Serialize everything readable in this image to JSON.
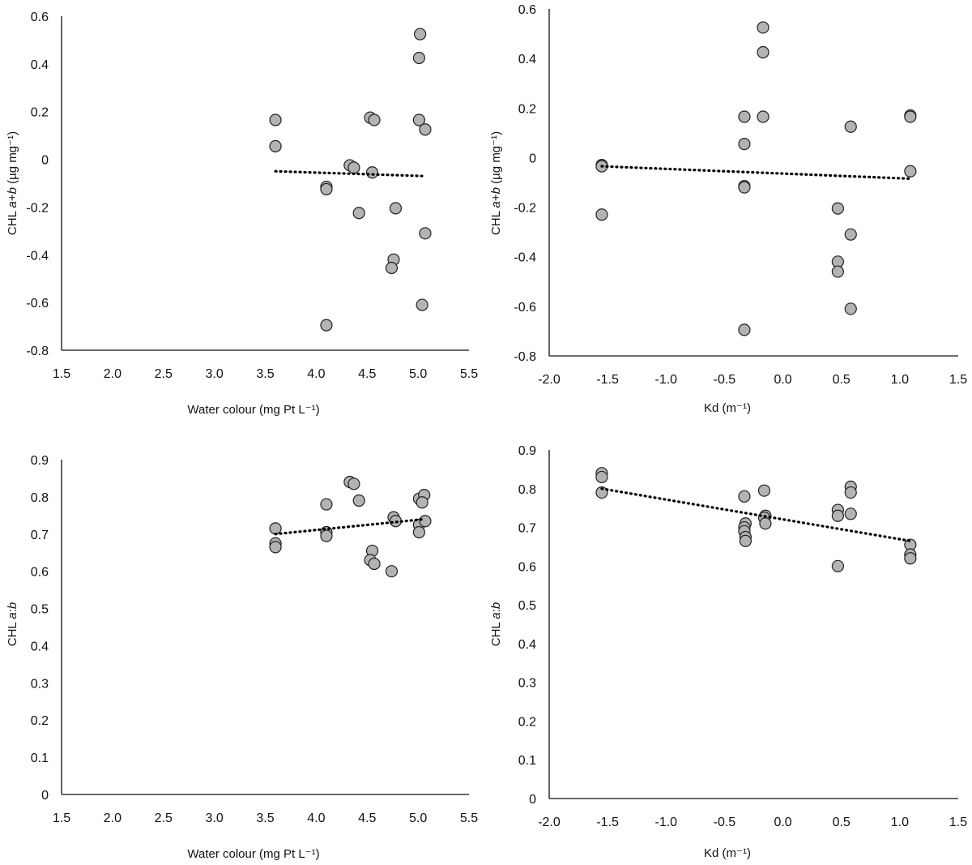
{
  "chart_data": [
    {
      "type": "scatter",
      "xlabel": "Water colour (mg Pt L⁻¹)",
      "ylabel": "CHL a+b (µg mg⁻¹)",
      "xlim": [
        1.5,
        5.5
      ],
      "ylim": [
        -0.8,
        0.6
      ],
      "xticks": [
        "1.5",
        "2.0",
        "2.5",
        "3.0",
        "3.5",
        "4.0",
        "4.5",
        "5.0",
        "5.5"
      ],
      "yticks": [
        "0.6",
        "0.4",
        "0.2",
        "0",
        "-0.2",
        "-0.4",
        "-0.6",
        "-0.8"
      ],
      "points": [
        [
          3.6,
          0.165
        ],
        [
          3.6,
          0.055
        ],
        [
          4.1,
          -0.115
        ],
        [
          4.1,
          -0.125
        ],
        [
          4.1,
          -0.695
        ],
        [
          4.33,
          -0.025
        ],
        [
          4.37,
          -0.035
        ],
        [
          4.42,
          -0.225
        ],
        [
          4.53,
          0.175
        ],
        [
          4.57,
          0.165
        ],
        [
          4.55,
          -0.055
        ],
        [
          4.76,
          -0.42
        ],
        [
          4.74,
          -0.455
        ],
        [
          4.78,
          -0.205
        ],
        [
          5.02,
          0.525
        ],
        [
          5.01,
          0.425
        ],
        [
          5.01,
          0.165
        ],
        [
          5.07,
          0.125
        ],
        [
          5.07,
          -0.31
        ],
        [
          5.04,
          -0.61
        ]
      ],
      "trendline": [
        [
          3.6,
          -0.05
        ],
        [
          5.06,
          -0.07
        ]
      ],
      "grid": false,
      "legend": "none"
    },
    {
      "type": "scatter",
      "xlabel": "Kd (m⁻¹)",
      "ylabel": "CHL a+b (µg mg⁻¹)",
      "xlim": [
        -2.0,
        1.5
      ],
      "ylim": [
        -0.8,
        0.6
      ],
      "xticks": [
        "-2.0",
        "-1.5",
        "-1.0",
        "-0.5",
        "0.0",
        "0.5",
        "1.0",
        "1.5"
      ],
      "yticks": [
        "0.6",
        "0.4",
        "0.2",
        "0",
        "-0.2",
        "-0.4",
        "-0.6",
        "-0.8"
      ],
      "points": [
        [
          -1.55,
          -0.03
        ],
        [
          -1.55,
          -0.035
        ],
        [
          -1.55,
          -0.23
        ],
        [
          -0.33,
          0.165
        ],
        [
          -0.33,
          0.055
        ],
        [
          -0.33,
          -0.115
        ],
        [
          -0.33,
          -0.12
        ],
        [
          -0.33,
          -0.695
        ],
        [
          -0.17,
          0.525
        ],
        [
          -0.17,
          0.425
        ],
        [
          -0.17,
          0.165
        ],
        [
          0.47,
          -0.205
        ],
        [
          0.47,
          -0.42
        ],
        [
          0.47,
          -0.46
        ],
        [
          0.58,
          0.125
        ],
        [
          0.58,
          -0.31
        ],
        [
          0.58,
          -0.61
        ],
        [
          1.09,
          0.17
        ],
        [
          1.09,
          0.165
        ],
        [
          1.09,
          -0.055
        ]
      ],
      "trendline": [
        [
          -1.55,
          -0.035
        ],
        [
          1.09,
          -0.085
        ]
      ],
      "grid": false,
      "legend": "none"
    },
    {
      "type": "scatter",
      "xlabel": "Water colour (mg Pt L⁻¹)",
      "ylabel": "CHL a:b",
      "xlim": [
        1.5,
        5.5
      ],
      "ylim": [
        0,
        0.9
      ],
      "xticks": [
        "1.5",
        "2.0",
        "2.5",
        "3.0",
        "3.5",
        "4.0",
        "4.5",
        "5.0",
        "5.5"
      ],
      "yticks": [
        "0.9",
        "0.8",
        "0.7",
        "0.6",
        "0.5",
        "0.4",
        "0.3",
        "0.2",
        "0.1",
        "0"
      ],
      "points": [
        [
          3.6,
          0.715
        ],
        [
          3.6,
          0.675
        ],
        [
          3.6,
          0.665
        ],
        [
          4.1,
          0.78
        ],
        [
          4.1,
          0.705
        ],
        [
          4.1,
          0.695
        ],
        [
          4.33,
          0.84
        ],
        [
          4.37,
          0.835
        ],
        [
          4.42,
          0.79
        ],
        [
          4.55,
          0.655
        ],
        [
          4.53,
          0.63
        ],
        [
          4.57,
          0.62
        ],
        [
          4.76,
          0.745
        ],
        [
          4.78,
          0.735
        ],
        [
          4.74,
          0.6
        ],
        [
          5.01,
          0.795
        ],
        [
          5.06,
          0.805
        ],
        [
          5.04,
          0.785
        ],
        [
          5.01,
          0.725
        ],
        [
          5.07,
          0.735
        ],
        [
          5.01,
          0.705
        ]
      ],
      "trendline": [
        [
          3.6,
          0.7
        ],
        [
          5.06,
          0.74
        ]
      ],
      "grid": false,
      "legend": "none"
    },
    {
      "type": "scatter",
      "xlabel": "Kd (m⁻¹)",
      "ylabel": "CHL a:b",
      "xlim": [
        -2.0,
        1.5
      ],
      "ylim": [
        0,
        0.9
      ],
      "xticks": [
        "-2.0",
        "-1.5",
        "-1.0",
        "-0.5",
        "0.0",
        "0.5",
        "1.0",
        "1.5"
      ],
      "yticks": [
        "0.9",
        "0.8",
        "0.7",
        "0.6",
        "0.5",
        "0.4",
        "0.3",
        "0.2",
        "0.1",
        "0"
      ],
      "points": [
        [
          -1.55,
          0.84
        ],
        [
          -1.55,
          0.83
        ],
        [
          -1.55,
          0.79
        ],
        [
          -0.33,
          0.78
        ],
        [
          -0.32,
          0.71
        ],
        [
          -0.33,
          0.7
        ],
        [
          -0.33,
          0.69
        ],
        [
          -0.32,
          0.675
        ],
        [
          -0.32,
          0.665
        ],
        [
          -0.16,
          0.795
        ],
        [
          -0.15,
          0.73
        ],
        [
          -0.16,
          0.725
        ],
        [
          -0.15,
          0.71
        ],
        [
          0.47,
          0.745
        ],
        [
          0.47,
          0.73
        ],
        [
          0.47,
          0.6
        ],
        [
          0.58,
          0.805
        ],
        [
          0.58,
          0.79
        ],
        [
          0.58,
          0.735
        ],
        [
          1.09,
          0.655
        ],
        [
          1.09,
          0.63
        ],
        [
          1.09,
          0.62
        ]
      ],
      "trendline": [
        [
          -1.55,
          0.8
        ],
        [
          1.09,
          0.665
        ]
      ],
      "grid": false,
      "legend": "none"
    }
  ],
  "colors": {
    "marker_fill": "#b3b3b3",
    "marker_stroke": "#222222",
    "axis": "#111111",
    "trendline": "#000000"
  }
}
